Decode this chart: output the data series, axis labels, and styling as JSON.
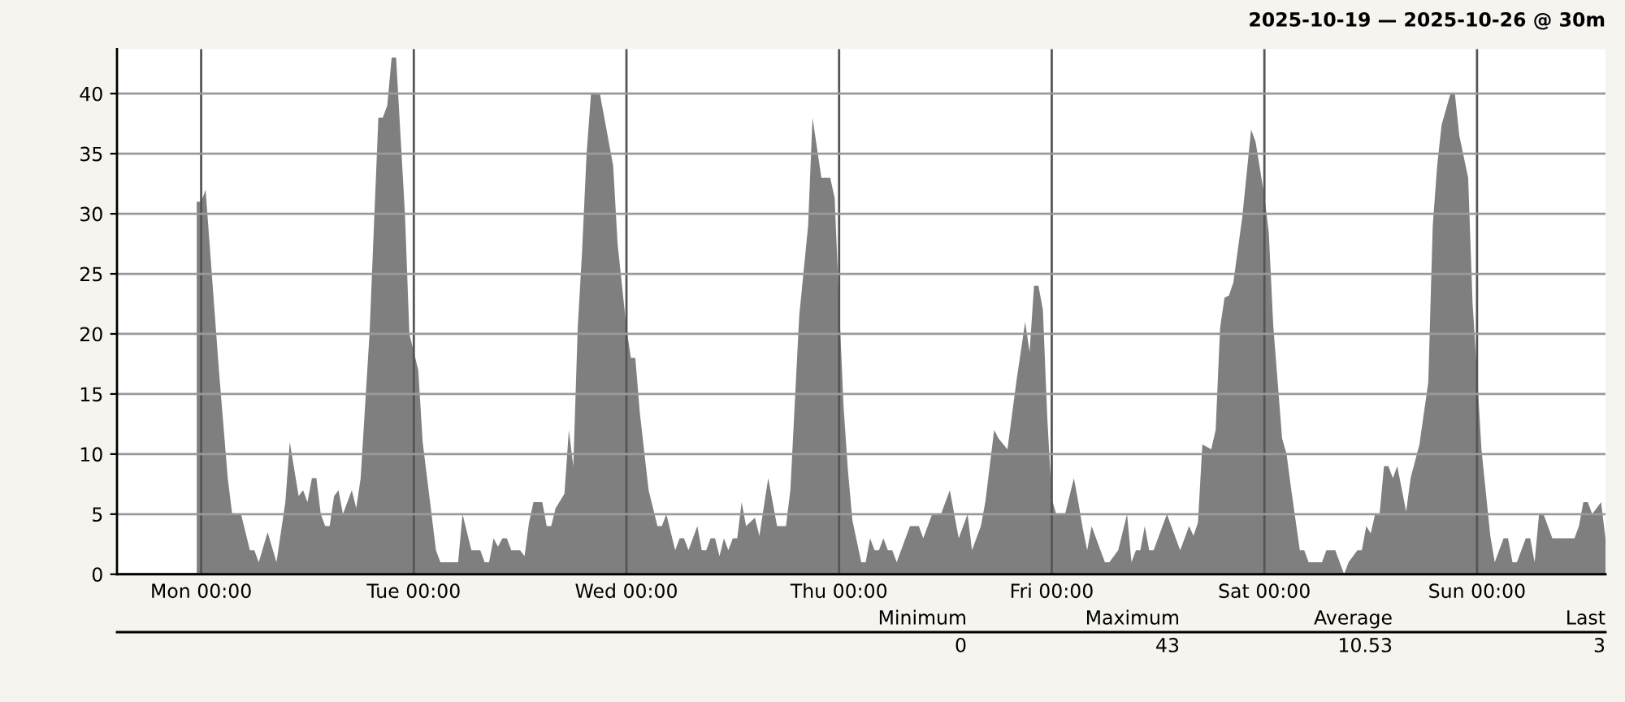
{
  "chart_data": {
    "type": "area",
    "subtitle": "2025-10-19 — 2025-10-26 @ 30m",
    "x": [
      "2025-10-19T23:30",
      "2025-10-20T00:00",
      "2025-10-20T00:30",
      "2025-10-20T01:30",
      "2025-10-20T02:00",
      "2025-10-20T03:00",
      "2025-10-20T03:30",
      "2025-10-20T04:30",
      "2025-10-20T05:00",
      "2025-10-20T05:30",
      "2025-10-20T06:00",
      "2025-10-20T06:30",
      "2025-10-20T07:30",
      "2025-10-20T08:30",
      "2025-10-20T09:30",
      "2025-10-20T10:00",
      "2025-10-20T11:00",
      "2025-10-20T11:30",
      "2025-10-20T12:00",
      "2025-10-20T12:30",
      "2025-10-20T13:00",
      "2025-10-20T13:30",
      "2025-10-20T14:00",
      "2025-10-20T14:30",
      "2025-10-20T15:00",
      "2025-10-20T15:30",
      "2025-10-20T16:00",
      "2025-10-20T17:00",
      "2025-10-20T17:30",
      "2025-10-20T18:00",
      "2025-10-20T19:00",
      "2025-10-20T20:00",
      "2025-10-20T20:30",
      "2025-10-20T21:00",
      "2025-10-20T21:30",
      "2025-10-20T22:00",
      "2025-10-20T22:30",
      "2025-10-20T23:00",
      "2025-10-20T23:30",
      "2025-10-21T00:30",
      "2025-10-21T01:00",
      "2025-10-21T01:30",
      "2025-10-21T02:00",
      "2025-10-21T02:30",
      "2025-10-21T03:00",
      "2025-10-21T05:00",
      "2025-10-21T05:30",
      "2025-10-21T06:30",
      "2025-10-21T07:30",
      "2025-10-21T08:00",
      "2025-10-21T08:30",
      "2025-10-21T09:00",
      "2025-10-21T09:30",
      "2025-10-21T10:00",
      "2025-10-21T10:30",
      "2025-10-21T11:00",
      "2025-10-21T12:00",
      "2025-10-21T12:30",
      "2025-10-21T13:00",
      "2025-10-21T13:30",
      "2025-10-21T14:30",
      "2025-10-21T15:00",
      "2025-10-21T15:30",
      "2025-10-21T16:00",
      "2025-10-21T17:00",
      "2025-10-21T17:30",
      "2025-10-21T18:00",
      "2025-10-21T18:30",
      "2025-10-21T19:00",
      "2025-10-21T19:30",
      "2025-10-21T20:00",
      "2025-10-21T21:00",
      "2025-10-21T21:30",
      "2025-10-21T22:30",
      "2025-10-21T23:00",
      "2025-10-22T00:00",
      "2025-10-22T00:30",
      "2025-10-22T01:00",
      "2025-10-22T01:30",
      "2025-10-22T02:30",
      "2025-10-22T03:30",
      "2025-10-22T04:00",
      "2025-10-22T04:30",
      "2025-10-22T05:30",
      "2025-10-22T06:00",
      "2025-10-22T06:30",
      "2025-10-22T07:00",
      "2025-10-22T08:00",
      "2025-10-22T08:30",
      "2025-10-22T09:00",
      "2025-10-22T09:30",
      "2025-10-22T10:00",
      "2025-10-22T10:30",
      "2025-10-22T11:00",
      "2025-10-22T11:30",
      "2025-10-22T12:00",
      "2025-10-22T12:30",
      "2025-10-22T13:00",
      "2025-10-22T13:30",
      "2025-10-22T14:30",
      "2025-10-22T15:00",
      "2025-10-22T16:00",
      "2025-10-22T17:00",
      "2025-10-22T18:00",
      "2025-10-22T18:30",
      "2025-10-22T19:30",
      "2025-10-22T20:30",
      "2025-10-22T21:00",
      "2025-10-22T22:00",
      "2025-10-22T23:00",
      "2025-10-22T23:30",
      "2025-10-23T00:00",
      "2025-10-23T00:30",
      "2025-10-23T01:00",
      "2025-10-23T01:30",
      "2025-10-23T02:30",
      "2025-10-23T03:00",
      "2025-10-23T03:30",
      "2025-10-23T04:00",
      "2025-10-23T04:30",
      "2025-10-23T05:00",
      "2025-10-23T05:30",
      "2025-10-23T06:00",
      "2025-10-23T06:30",
      "2025-10-23T08:00",
      "2025-10-23T09:00",
      "2025-10-23T09:30",
      "2025-10-23T10:30",
      "2025-10-23T11:30",
      "2025-10-23T12:30",
      "2025-10-23T13:30",
      "2025-10-23T14:30",
      "2025-10-23T15:00",
      "2025-10-23T16:00",
      "2025-10-23T16:30",
      "2025-10-23T17:30",
      "2025-10-23T18:00",
      "2025-10-23T19:00",
      "2025-10-23T20:00",
      "2025-10-23T21:00",
      "2025-10-23T21:30",
      "2025-10-23T22:00",
      "2025-10-23T22:30",
      "2025-10-23T23:00",
      "2025-10-23T23:30",
      "2025-10-24T00:00",
      "2025-10-24T00:30",
      "2025-10-24T01:30",
      "2025-10-24T02:30",
      "2025-10-24T03:00",
      "2025-10-24T03:30",
      "2025-10-24T04:00",
      "2025-10-24T04:30",
      "2025-10-24T05:30",
      "2025-10-24T06:00",
      "2025-10-24T06:30",
      "2025-10-24T07:30",
      "2025-10-24T08:30",
      "2025-10-24T09:00",
      "2025-10-24T09:30",
      "2025-10-24T10:00",
      "2025-10-24T10:30",
      "2025-10-24T11:00",
      "2025-10-24T11:30",
      "2025-10-24T12:30",
      "2025-10-24T13:00",
      "2025-10-24T14:00",
      "2025-10-24T14:30",
      "2025-10-24T15:30",
      "2025-10-24T16:00",
      "2025-10-24T16:30",
      "2025-10-24T17:00",
      "2025-10-24T18:00",
      "2025-10-24T18:30",
      "2025-10-24T19:00",
      "2025-10-24T19:30",
      "2025-10-24T20:00",
      "2025-10-24T20:30",
      "2025-10-24T21:30",
      "2025-10-24T22:30",
      "2025-10-24T23:00",
      "2025-10-25T00:00",
      "2025-10-25T00:30",
      "2025-10-25T01:00",
      "2025-10-25T02:00",
      "2025-10-25T02:30",
      "2025-10-25T03:00",
      "2025-10-25T04:00",
      "2025-10-25T04:30",
      "2025-10-25T05:00",
      "2025-10-25T06:30",
      "2025-10-25T07:00",
      "2025-10-25T08:00",
      "2025-10-25T09:00",
      "2025-10-25T09:30",
      "2025-10-25T10:30",
      "2025-10-25T11:00",
      "2025-10-25T11:30",
      "2025-10-25T12:00",
      "2025-10-25T12:30",
      "2025-10-25T13:00",
      "2025-10-25T13:30",
      "2025-10-25T14:00",
      "2025-10-25T14:30",
      "2025-10-25T15:00",
      "2025-10-25T16:00",
      "2025-10-25T16:30",
      "2025-10-25T17:30",
      "2025-10-25T18:30",
      "2025-10-25T19:00",
      "2025-10-25T19:30",
      "2025-10-25T20:00",
      "2025-10-25T21:00",
      "2025-10-25T21:30",
      "2025-10-25T22:00",
      "2025-10-25T23:00",
      "2025-10-25T23:30",
      "2025-10-26T00:00",
      "2025-10-26T00:30",
      "2025-10-26T01:30",
      "2025-10-26T02:00",
      "2025-10-26T03:00",
      "2025-10-26T03:30",
      "2025-10-26T04:00",
      "2025-10-26T04:30",
      "2025-10-26T05:30",
      "2025-10-26T06:00",
      "2025-10-26T06:30",
      "2025-10-26T07:00",
      "2025-10-26T07:30",
      "2025-10-26T08:30",
      "2025-10-26T11:00",
      "2025-10-26T11:30",
      "2025-10-26T12:00",
      "2025-10-26T12:30",
      "2025-10-26T13:00",
      "2025-10-26T14:00",
      "2025-10-26T14:30"
    ],
    "series": [
      {
        "color": "#7f7f7f",
        "values": [
          31,
          31,
          32,
          22,
          17,
          8,
          5,
          5,
          3.5,
          2,
          2,
          1,
          3.5,
          1,
          6,
          11,
          6.5,
          7,
          6,
          8,
          8,
          5,
          4,
          4,
          6.5,
          7,
          5,
          7,
          5.5,
          8,
          20,
          38,
          38,
          39,
          43,
          43,
          36.5,
          30,
          20,
          17,
          11,
          8,
          5,
          2,
          1,
          1,
          5,
          2,
          2,
          1,
          1,
          3,
          2.3,
          3,
          3,
          2,
          2,
          1.5,
          4.3,
          6,
          6,
          4,
          4,
          5.5,
          6.7,
          12,
          9,
          20.5,
          27,
          35,
          40,
          40,
          38,
          34,
          27.5,
          20.5,
          18,
          18,
          13.5,
          7,
          4,
          4,
          5,
          2,
          3,
          3,
          2,
          4,
          2,
          2,
          3,
          3,
          1.5,
          3,
          2,
          3,
          3,
          6,
          4,
          4.7,
          3.2,
          8,
          4,
          4,
          7,
          21.5,
          29,
          38,
          33,
          33,
          31.3,
          22.5,
          14,
          8.6,
          4.5,
          1,
          1,
          3,
          2,
          2,
          3,
          2,
          2,
          1,
          4,
          4,
          3,
          5,
          5,
          7,
          3,
          5,
          2,
          4,
          6,
          12,
          11.3,
          10.4,
          16,
          21,
          18.5,
          24,
          24,
          22,
          13,
          6.3,
          5,
          5,
          8,
          6,
          3.8,
          2,
          4,
          2,
          1,
          1,
          2,
          5,
          1,
          2,
          2,
          4,
          2,
          2,
          4,
          5,
          3,
          2,
          4,
          3.2,
          4.3,
          10.8,
          10.4,
          12,
          20.5,
          23,
          23.2,
          24.3,
          29.7,
          37,
          36,
          31.5,
          28.4,
          20.7,
          11.3,
          10,
          7.2,
          2,
          2,
          1,
          1,
          2,
          2,
          0,
          1,
          2,
          2,
          4,
          3.4,
          5,
          5,
          9,
          9,
          8,
          9,
          5.2,
          8,
          10.8,
          16,
          29,
          34,
          37.4,
          40,
          40,
          36.5,
          33,
          22.5,
          16.7,
          10.4,
          3.2,
          1,
          3,
          3,
          1,
          1,
          3,
          3,
          1,
          5,
          5,
          3,
          3,
          4,
          6,
          6,
          5,
          6,
          3
        ]
      }
    ],
    "xlim": [
      "2025-10-19T14:30",
      "2025-10-26T14:30"
    ],
    "ylim": [
      0,
      43.7
    ],
    "xticks": [
      {
        "value": "2025-10-20T00:00",
        "label": "Mon 00:00"
      },
      {
        "value": "2025-10-21T00:00",
        "label": "Tue 00:00"
      },
      {
        "value": "2025-10-22T00:00",
        "label": "Wed 00:00"
      },
      {
        "value": "2025-10-23T00:00",
        "label": "Thu 00:00"
      },
      {
        "value": "2025-10-24T00:00",
        "label": "Fri 00:00"
      },
      {
        "value": "2025-10-25T00:00",
        "label": "Sat 00:00"
      },
      {
        "value": "2025-10-26T00:00",
        "label": "Sun 00:00"
      }
    ],
    "yticks": [
      0,
      5,
      10,
      15,
      20,
      25,
      30,
      35,
      40
    ],
    "grid": true,
    "annotations": [
      "Minimum",
      "Maximum",
      "Average",
      "Last",
      "0",
      "43",
      "10.53",
      "3"
    ]
  }
}
